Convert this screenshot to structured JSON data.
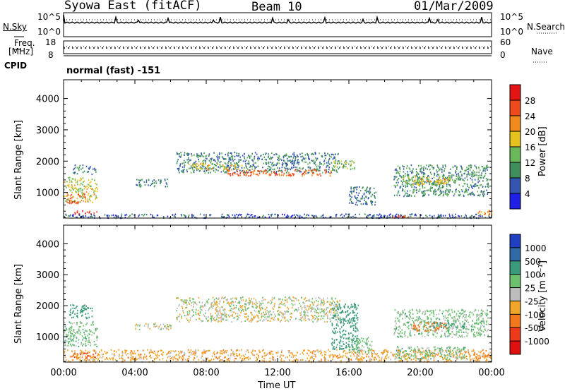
{
  "header": {
    "station": "Syowa East (fitACF)",
    "beam": "Beam 10",
    "date": "01/Mar/2009"
  },
  "noise_panel": {
    "left_label": "N.Sky",
    "left_ticks": [
      "10^5",
      "10^0"
    ],
    "right_ticks": [
      "10^5",
      "10^0"
    ],
    "right_label": "N.Search"
  },
  "freq_panel": {
    "left_label_line1": "Freq.",
    "left_label_line2": "[MHz]",
    "left_ticks": [
      "18",
      "8"
    ],
    "right_ticks": [
      "60",
      "0"
    ],
    "right_label": "Nave"
  },
  "cpid_panel": {
    "label": "CPID",
    "program": "normal (fast) -151"
  },
  "time_axis": {
    "title": "Time UT",
    "ticks": [
      "00:00",
      "04:00",
      "08:00",
      "12:00",
      "16:00",
      "20:00",
      "00:00"
    ]
  },
  "range_axis": {
    "title": "Slant Range [km]",
    "ticks": [
      "1000",
      "2000",
      "3000",
      "4000"
    ]
  },
  "power_colorbar": {
    "title": "Power [dB]",
    "ticks": [
      "4",
      "8",
      "12",
      "16",
      "20",
      "24",
      "28"
    ],
    "colors": [
      "#1f1fe6",
      "#3556b0",
      "#3f8f5c",
      "#6ab85a",
      "#e6c21e",
      "#f28a1e",
      "#ef4a1e",
      "#e41414"
    ]
  },
  "velocity_colorbar": {
    "title": "Velocity [m s⁻¹]",
    "ticks": [
      "1000",
      "500",
      "100",
      "25",
      "-25",
      "-100",
      "-500",
      "-1000"
    ],
    "colors": [
      "#2040c0",
      "#2f6aa6",
      "#3c9a7c",
      "#6cc06e",
      "#bdbdbd",
      "#f0a62a",
      "#f2781e",
      "#ec3a1a",
      "#e01010"
    ]
  },
  "chart_data": [
    {
      "type": "heatmap",
      "title": "Power [dB]",
      "xlabel": "Time UT",
      "ylabel": "Slant Range [km]",
      "xlim": [
        0,
        24
      ],
      "ylim": [
        180,
        4600
      ],
      "colorbar_range": [
        0,
        30
      ],
      "blobs": [
        {
          "t0": 0.0,
          "t1": 1.9,
          "r0": 700,
          "r1": 1500,
          "v": 17
        },
        {
          "t0": 0.2,
          "t1": 1.2,
          "r0": 650,
          "r1": 1000,
          "v": 25
        },
        {
          "t0": 0.6,
          "t1": 1.9,
          "r0": 300,
          "r1": 450,
          "v": 26
        },
        {
          "t0": 0.5,
          "t1": 1.8,
          "r0": 1600,
          "r1": 1900,
          "v": 9
        },
        {
          "t0": 4.0,
          "t1": 5.8,
          "r0": 1200,
          "r1": 1450,
          "v": 9
        },
        {
          "t0": 6.3,
          "t1": 15.5,
          "r0": 1650,
          "r1": 2300,
          "v": 9
        },
        {
          "t0": 7.0,
          "t1": 10.0,
          "r0": 1750,
          "r1": 1950,
          "v": 18
        },
        {
          "t0": 9.0,
          "t1": 15.0,
          "r0": 1550,
          "r1": 1750,
          "v": 25
        },
        {
          "t0": 15.0,
          "t1": 16.3,
          "r0": 1750,
          "r1": 2050,
          "v": 14
        },
        {
          "t0": 16.0,
          "t1": 17.5,
          "r0": 600,
          "r1": 1200,
          "v": 8
        },
        {
          "t0": 18.5,
          "t1": 23.8,
          "r0": 900,
          "r1": 1900,
          "v": 10
        },
        {
          "t0": 19.0,
          "t1": 22.0,
          "r0": 1250,
          "r1": 1550,
          "v": 15
        },
        {
          "t0": 20.0,
          "t1": 21.5,
          "r0": 1300,
          "r1": 1450,
          "v": 21
        },
        {
          "t0": 0.0,
          "t1": 24.0,
          "r0": 200,
          "r1": 330,
          "v": 6
        },
        {
          "t0": 18.3,
          "t1": 19.3,
          "r0": 200,
          "r1": 300,
          "v": 27
        },
        {
          "t0": 23.2,
          "t1": 24.0,
          "r0": 300,
          "r1": 450,
          "v": 22
        }
      ]
    },
    {
      "type": "heatmap",
      "title": "Velocity [m s⁻¹]",
      "xlabel": "Time UT",
      "ylabel": "Slant Range [km]",
      "xlim": [
        0,
        24
      ],
      "ylim": [
        180,
        4600
      ],
      "blobs": [
        {
          "t0": 0.0,
          "t1": 1.9,
          "r0": 700,
          "r1": 1500,
          "v": 60
        },
        {
          "t0": 0.3,
          "t1": 1.6,
          "r0": 1600,
          "r1": 2050,
          "v": 300
        },
        {
          "t0": 0.5,
          "t1": 1.8,
          "r0": 300,
          "r1": 500,
          "v": -600
        },
        {
          "t0": 0.0,
          "t1": 24.0,
          "r0": 200,
          "r1": 600,
          "v": -60
        },
        {
          "t0": 4.0,
          "t1": 6.0,
          "r0": 1250,
          "r1": 1450,
          "v": 0
        },
        {
          "t0": 6.3,
          "t1": 15.5,
          "r0": 1500,
          "r1": 2300,
          "v": 0
        },
        {
          "t0": 15.0,
          "t1": 16.5,
          "r0": 600,
          "r1": 2100,
          "v": 200
        },
        {
          "t0": 16.0,
          "t1": 17.3,
          "r0": 500,
          "r1": 1000,
          "v": 60
        },
        {
          "t0": 18.5,
          "t1": 23.8,
          "r0": 1000,
          "r1": 1900,
          "v": 50
        },
        {
          "t0": 19.5,
          "t1": 21.5,
          "r0": 1200,
          "r1": 1500,
          "v": -300
        },
        {
          "t0": 20.5,
          "t1": 22.5,
          "r0": 1300,
          "r1": 1500,
          "v": 400
        },
        {
          "t0": 18.5,
          "t1": 22.5,
          "r0": 300,
          "r1": 700,
          "v": 60
        },
        {
          "t0": 23.0,
          "t1": 24.0,
          "r0": 300,
          "r1": 500,
          "v": -150
        }
      ]
    }
  ]
}
